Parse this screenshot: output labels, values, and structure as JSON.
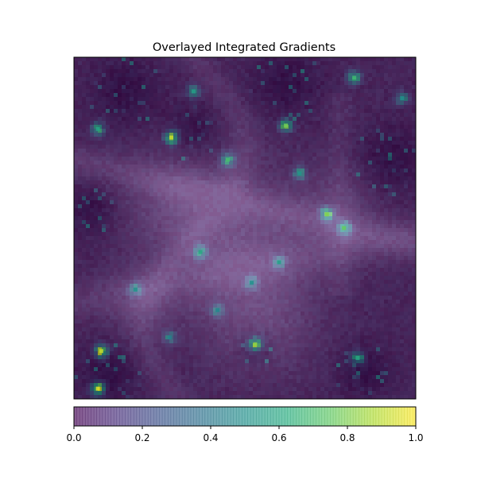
{
  "chart_data": {
    "type": "heatmap",
    "title": "Overlayed Integrated Gradients",
    "xlabel": "",
    "ylabel": "",
    "axes_ticks_visible": false,
    "overlay_alpha": 0.65,
    "colormap": "viridis",
    "colorbar": {
      "orientation": "horizontal",
      "placement": "bottom",
      "range": [
        0.0,
        1.0
      ],
      "ticks": [
        0.0,
        0.2,
        0.4,
        0.6,
        0.8,
        1.0
      ],
      "tick_labels": [
        "0.0",
        "0.2",
        "0.4",
        "0.6",
        "0.8",
        "1.0"
      ]
    },
    "base_image": {
      "description_level": "dark grayscale texture with brighter ridge bands",
      "brightness_fields": [
        {
          "cx": 0.48,
          "cy": 0.55,
          "r": 0.22,
          "v": 0.45
        },
        {
          "cx": 0.3,
          "cy": 0.42,
          "r": 0.15,
          "v": 0.3
        },
        {
          "cx": 0.55,
          "cy": 0.78,
          "r": 0.16,
          "v": 0.28
        },
        {
          "cx": 0.78,
          "cy": 0.45,
          "r": 0.12,
          "v": 0.25
        },
        {
          "cx": 0.2,
          "cy": 0.72,
          "r": 0.1,
          "v": 0.22
        }
      ]
    },
    "attribution_hotspots": [
      {
        "x": 0.285,
        "y": 0.235,
        "value": 0.92,
        "label": "bright-spot"
      },
      {
        "x": 0.62,
        "y": 0.2,
        "value": 0.78
      },
      {
        "x": 0.45,
        "y": 0.3,
        "value": 0.7
      },
      {
        "x": 0.74,
        "y": 0.46,
        "value": 0.8
      },
      {
        "x": 0.79,
        "y": 0.5,
        "value": 0.76
      },
      {
        "x": 0.37,
        "y": 0.57,
        "value": 0.6
      },
      {
        "x": 0.6,
        "y": 0.6,
        "value": 0.55
      },
      {
        "x": 0.52,
        "y": 0.66,
        "value": 0.5
      },
      {
        "x": 0.53,
        "y": 0.84,
        "value": 0.82
      },
      {
        "x": 0.08,
        "y": 0.86,
        "value": 0.9
      },
      {
        "x": 0.07,
        "y": 0.97,
        "value": 0.95
      },
      {
        "x": 0.83,
        "y": 0.88,
        "value": 0.6
      },
      {
        "x": 0.07,
        "y": 0.21,
        "value": 0.58
      },
      {
        "x": 0.35,
        "y": 0.1,
        "value": 0.55
      },
      {
        "x": 0.82,
        "y": 0.06,
        "value": 0.68
      },
      {
        "x": 0.96,
        "y": 0.12,
        "value": 0.5
      },
      {
        "x": 0.18,
        "y": 0.68,
        "value": 0.48
      },
      {
        "x": 0.28,
        "y": 0.82,
        "value": 0.44
      },
      {
        "x": 0.66,
        "y": 0.34,
        "value": 0.52
      },
      {
        "x": 0.42,
        "y": 0.74,
        "value": 0.46
      }
    ],
    "dark_regions": [
      {
        "x": 0.15,
        "y": 0.1,
        "r": 0.1
      },
      {
        "x": 0.35,
        "y": 0.22,
        "r": 0.08
      },
      {
        "x": 0.62,
        "y": 0.08,
        "r": 0.1
      },
      {
        "x": 0.93,
        "y": 0.3,
        "r": 0.1
      },
      {
        "x": 0.1,
        "y": 0.93,
        "r": 0.09
      },
      {
        "x": 0.85,
        "y": 0.92,
        "r": 0.08
      },
      {
        "x": 0.05,
        "y": 0.45,
        "r": 0.07
      },
      {
        "x": 0.53,
        "y": 0.85,
        "r": 0.05
      }
    ]
  }
}
